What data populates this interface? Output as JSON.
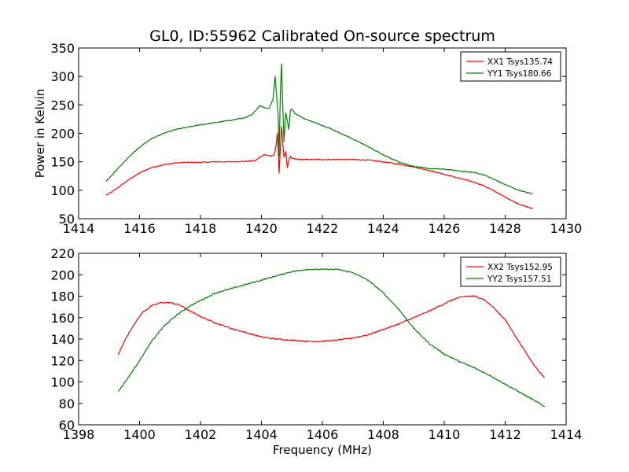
{
  "figure": {
    "title": "GL0, ID:55962 Calibrated On-source spectrum"
  },
  "chart_data": [
    {
      "type": "line",
      "title": "GL0, ID:55962 Calibrated On-source spectrum",
      "xlabel": "",
      "ylabel": "Power in Kelvin",
      "xlim": [
        1414,
        1430
      ],
      "ylim": [
        50,
        350
      ],
      "x_ticks": [
        1414,
        1416,
        1418,
        1420,
        1422,
        1424,
        1426,
        1428,
        1430
      ],
      "y_ticks": [
        50,
        100,
        150,
        200,
        250,
        300,
        350
      ],
      "x_tick_labels": [
        "1414",
        "1416",
        "1418",
        "1420",
        "1422",
        "1424",
        "1426",
        "1428",
        "1430"
      ],
      "y_tick_labels": [
        "50",
        "100",
        "150",
        "200",
        "250",
        "300",
        "350"
      ],
      "grid": false,
      "legend_position": "top-right",
      "series": [
        {
          "name": "XX1 Tsys135.74",
          "color": "#ff0000",
          "x": [
            1414.9,
            1415.2,
            1415.5,
            1415.8,
            1416.1,
            1416.4,
            1416.8,
            1417.2,
            1417.6,
            1418.0,
            1418.5,
            1419.0,
            1419.5,
            1419.8,
            1419.95,
            1420.1,
            1420.3,
            1420.42,
            1420.48,
            1420.52,
            1420.55,
            1420.58,
            1420.62,
            1420.66,
            1420.7,
            1420.74,
            1420.8,
            1420.85,
            1420.9,
            1420.95,
            1421.0,
            1421.1,
            1421.3,
            1421.6,
            1422.0,
            1422.5,
            1423.0,
            1423.5,
            1424.0,
            1424.5,
            1425.0,
            1425.5,
            1426.0,
            1426.5,
            1427.0,
            1427.3,
            1427.6,
            1428.0,
            1428.4,
            1428.7,
            1428.9
          ],
          "values": [
            91,
            101,
            113,
            124,
            133,
            140,
            145,
            148,
            149,
            149,
            150,
            150,
            151,
            152,
            158,
            163,
            160,
            162,
            178,
            200,
            172,
            130,
            175,
            212,
            182,
            158,
            168,
            140,
            152,
            160,
            156,
            155,
            154,
            154,
            154,
            154,
            154,
            153,
            150,
            146,
            141,
            135,
            128,
            121,
            114,
            108,
            100,
            88,
            77,
            71,
            68
          ]
        },
        {
          "name": "YY1 Tsys180.66",
          "color": "#008000",
          "x": [
            1414.9,
            1415.2,
            1415.5,
            1415.8,
            1416.1,
            1416.4,
            1416.8,
            1417.2,
            1417.6,
            1418.0,
            1418.5,
            1419.0,
            1419.5,
            1419.7,
            1419.85,
            1419.95,
            1420.1,
            1420.25,
            1420.38,
            1420.45,
            1420.5,
            1420.55,
            1420.58,
            1420.62,
            1420.66,
            1420.7,
            1420.74,
            1420.8,
            1420.85,
            1420.9,
            1420.95,
            1421.0,
            1421.1,
            1421.4,
            1421.8,
            1422.2,
            1422.6,
            1423.0,
            1423.5,
            1424.0,
            1424.5,
            1425.0,
            1425.5,
            1426.0,
            1426.5,
            1427.0,
            1427.3,
            1427.6,
            1428.0,
            1428.4,
            1428.7,
            1428.9
          ],
          "values": [
            115,
            133,
            150,
            166,
            180,
            191,
            200,
            207,
            211,
            215,
            219,
            223,
            228,
            233,
            243,
            249,
            245,
            244,
            260,
            300,
            265,
            230,
            160,
            270,
            322,
            248,
            185,
            236,
            222,
            207,
            240,
            243,
            235,
            226,
            218,
            210,
            200,
            190,
            177,
            162,
            150,
            142,
            138,
            137,
            134,
            131,
            127,
            120,
            110,
            101,
            96,
            94
          ]
        }
      ]
    },
    {
      "type": "line",
      "title": "",
      "xlabel": "Frequency (MHz)",
      "ylabel": "",
      "xlim": [
        1398,
        1414
      ],
      "ylim": [
        60,
        220
      ],
      "x_ticks": [
        1398,
        1400,
        1402,
        1404,
        1406,
        1408,
        1410,
        1412,
        1414
      ],
      "y_ticks": [
        60,
        80,
        100,
        120,
        140,
        160,
        180,
        200,
        220
      ],
      "x_tick_labels": [
        "1398",
        "1400",
        "1402",
        "1404",
        "1406",
        "1408",
        "1410",
        "1412",
        "1414"
      ],
      "y_tick_labels": [
        "60",
        "80",
        "100",
        "120",
        "140",
        "160",
        "180",
        "200",
        "220"
      ],
      "grid": false,
      "legend_position": "top-right",
      "series": [
        {
          "name": "XX2 Tsys152.95",
          "color": "#ff0000",
          "x": [
            1399.3,
            1399.5,
            1399.8,
            1400.1,
            1400.4,
            1400.7,
            1401.0,
            1401.3,
            1401.6,
            1402.0,
            1402.5,
            1403.0,
            1403.5,
            1404.0,
            1404.5,
            1405.0,
            1405.5,
            1406.0,
            1406.5,
            1407.0,
            1407.5,
            1408.0,
            1408.5,
            1409.0,
            1409.5,
            1410.0,
            1410.4,
            1410.7,
            1411.0,
            1411.3,
            1411.6,
            1412.0,
            1412.4,
            1412.8,
            1413.1,
            1413.3
          ],
          "values": [
            125,
            138,
            153,
            165,
            171,
            174,
            174,
            172,
            167,
            161,
            155,
            150,
            146,
            142,
            140,
            139,
            138,
            138,
            139,
            141,
            144,
            149,
            154,
            160,
            166,
            173,
            178,
            180,
            180,
            177,
            170,
            158,
            140,
            122,
            110,
            104
          ]
        },
        {
          "name": "YY2 Tsys157.51",
          "color": "#008000",
          "x": [
            1399.3,
            1399.6,
            1400.0,
            1400.4,
            1400.8,
            1401.2,
            1401.6,
            1402.0,
            1402.5,
            1403.0,
            1403.5,
            1404.0,
            1404.5,
            1405.0,
            1405.5,
            1406.0,
            1406.5,
            1407.0,
            1407.5,
            1408.0,
            1408.5,
            1409.0,
            1409.5,
            1410.0,
            1410.5,
            1411.0,
            1411.5,
            1412.0,
            1412.5,
            1413.0,
            1413.3
          ],
          "values": [
            91,
            103,
            120,
            138,
            152,
            162,
            170,
            176,
            183,
            187,
            191,
            195,
            199,
            203,
            205,
            205,
            205,
            202,
            195,
            183,
            168,
            150,
            136,
            126,
            119,
            113,
            106,
            98,
            90,
            82,
            77
          ]
        }
      ]
    }
  ]
}
